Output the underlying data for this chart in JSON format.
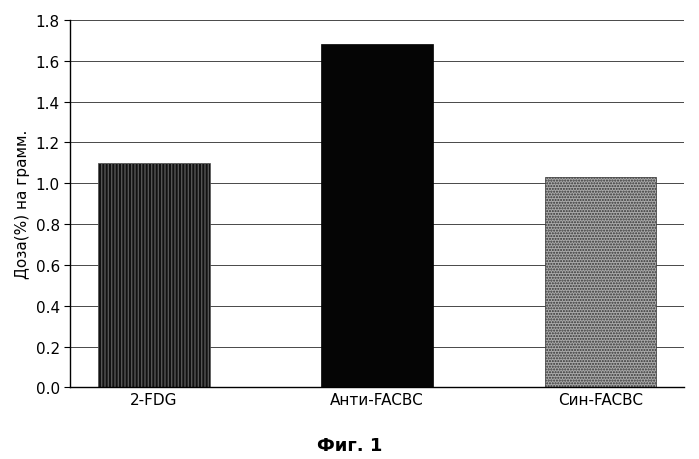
{
  "categories": [
    "2-FDG",
    "Анти-FACBC",
    "Син-FACBC"
  ],
  "values": [
    1.1,
    1.68,
    1.03
  ],
  "ylabel": "Доза(%) на грамм.",
  "caption": "Фиг. 1",
  "ylim": [
    0,
    1.8
  ],
  "yticks": [
    0,
    0.2,
    0.4,
    0.6,
    0.8,
    1.0,
    1.2,
    1.4,
    1.6,
    1.8
  ],
  "bar_width": 0.5,
  "background_color": "#ffffff",
  "axis_fontsize": 11,
  "caption_fontsize": 13,
  "bar0_color": "#111111",
  "bar1_color": "#050505",
  "bar2_color": "#aaaaaa"
}
